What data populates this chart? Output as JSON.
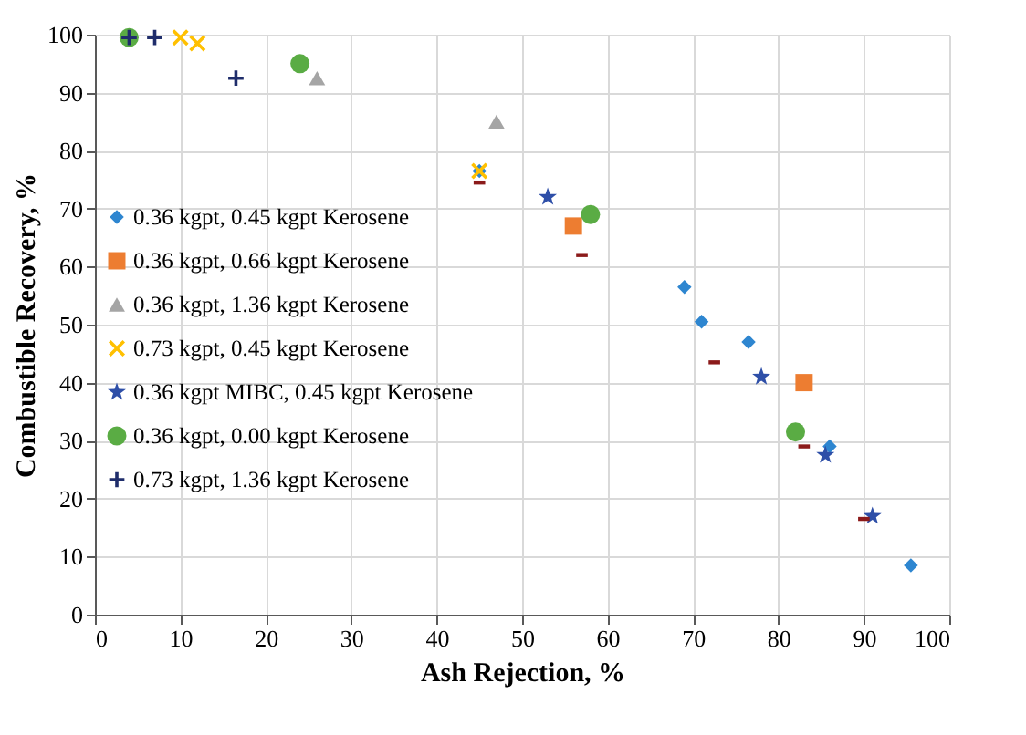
{
  "chart_data": {
    "type": "scatter",
    "xlabel": "Ash Rejection, %",
    "ylabel": "Combustible Recovery, %",
    "xlim": [
      0,
      100
    ],
    "xticks": [
      0,
      10,
      20,
      30,
      40,
      50,
      60,
      70,
      80,
      90,
      100
    ],
    "ylim": [
      0,
      100
    ],
    "yticks": [
      0,
      10,
      20,
      30,
      40,
      50,
      60,
      70,
      80,
      90,
      100
    ],
    "grid": true,
    "legend": "left",
    "series": [
      {
        "name": "0.36 kgpt, 0.45 kgpt Kerosene",
        "color": "#2e86d0",
        "marker": "diamond",
        "x": [
          45,
          69,
          71,
          76.5,
          86,
          95.5
        ],
        "values": [
          76.5,
          56.5,
          50.5,
          47,
          29,
          8.5
        ]
      },
      {
        "name": "0.36 kgpt,  0.66 kgpt Kerosene",
        "color": "#ed7d31",
        "marker": "square",
        "x": [
          56,
          83
        ],
        "values": [
          67,
          40
        ]
      },
      {
        "name": "0.36 kgpt, 1.36 kgpt Kerosene",
        "color": "#a5a5a5",
        "marker": "triangle",
        "x": [
          26,
          47
        ],
        "values": [
          92.5,
          85
        ]
      },
      {
        "name": "0.73 kgpt, 0.45 kgpt Kerosene",
        "color": "#ffc000",
        "marker": "x",
        "x": [
          10,
          12,
          45
        ],
        "values": [
          99.5,
          98.5,
          76.5
        ]
      },
      {
        "name": "0.36 kgpt MIBC, 0.45 kgpt Kerosene",
        "color": "#2e4fa8",
        "marker": "star",
        "x": [
          53,
          78,
          85.5,
          91
        ],
        "values": [
          72,
          41,
          27.5,
          17
        ]
      },
      {
        "name": "0.36 kgpt, 0.00 kgpt Kerosene",
        "color": "#5aac44",
        "marker": "circle",
        "x": [
          4,
          24,
          58,
          82
        ],
        "values": [
          99.5,
          95,
          69,
          31.5
        ]
      },
      {
        "name": "0.73 kgpt, 1.36 kgpt Kerosene",
        "color": "#1f2d6b",
        "marker": "cross",
        "x": [
          4,
          7,
          16.5
        ],
        "values": [
          99.5,
          99.5,
          92.5
        ]
      },
      {
        "color": "#8b1a1a",
        "x": [
          45,
          57,
          72.5,
          83,
          90
        ],
        "values": [
          74.5,
          62,
          43.5,
          29,
          16.5
        ]
      }
    ]
  }
}
